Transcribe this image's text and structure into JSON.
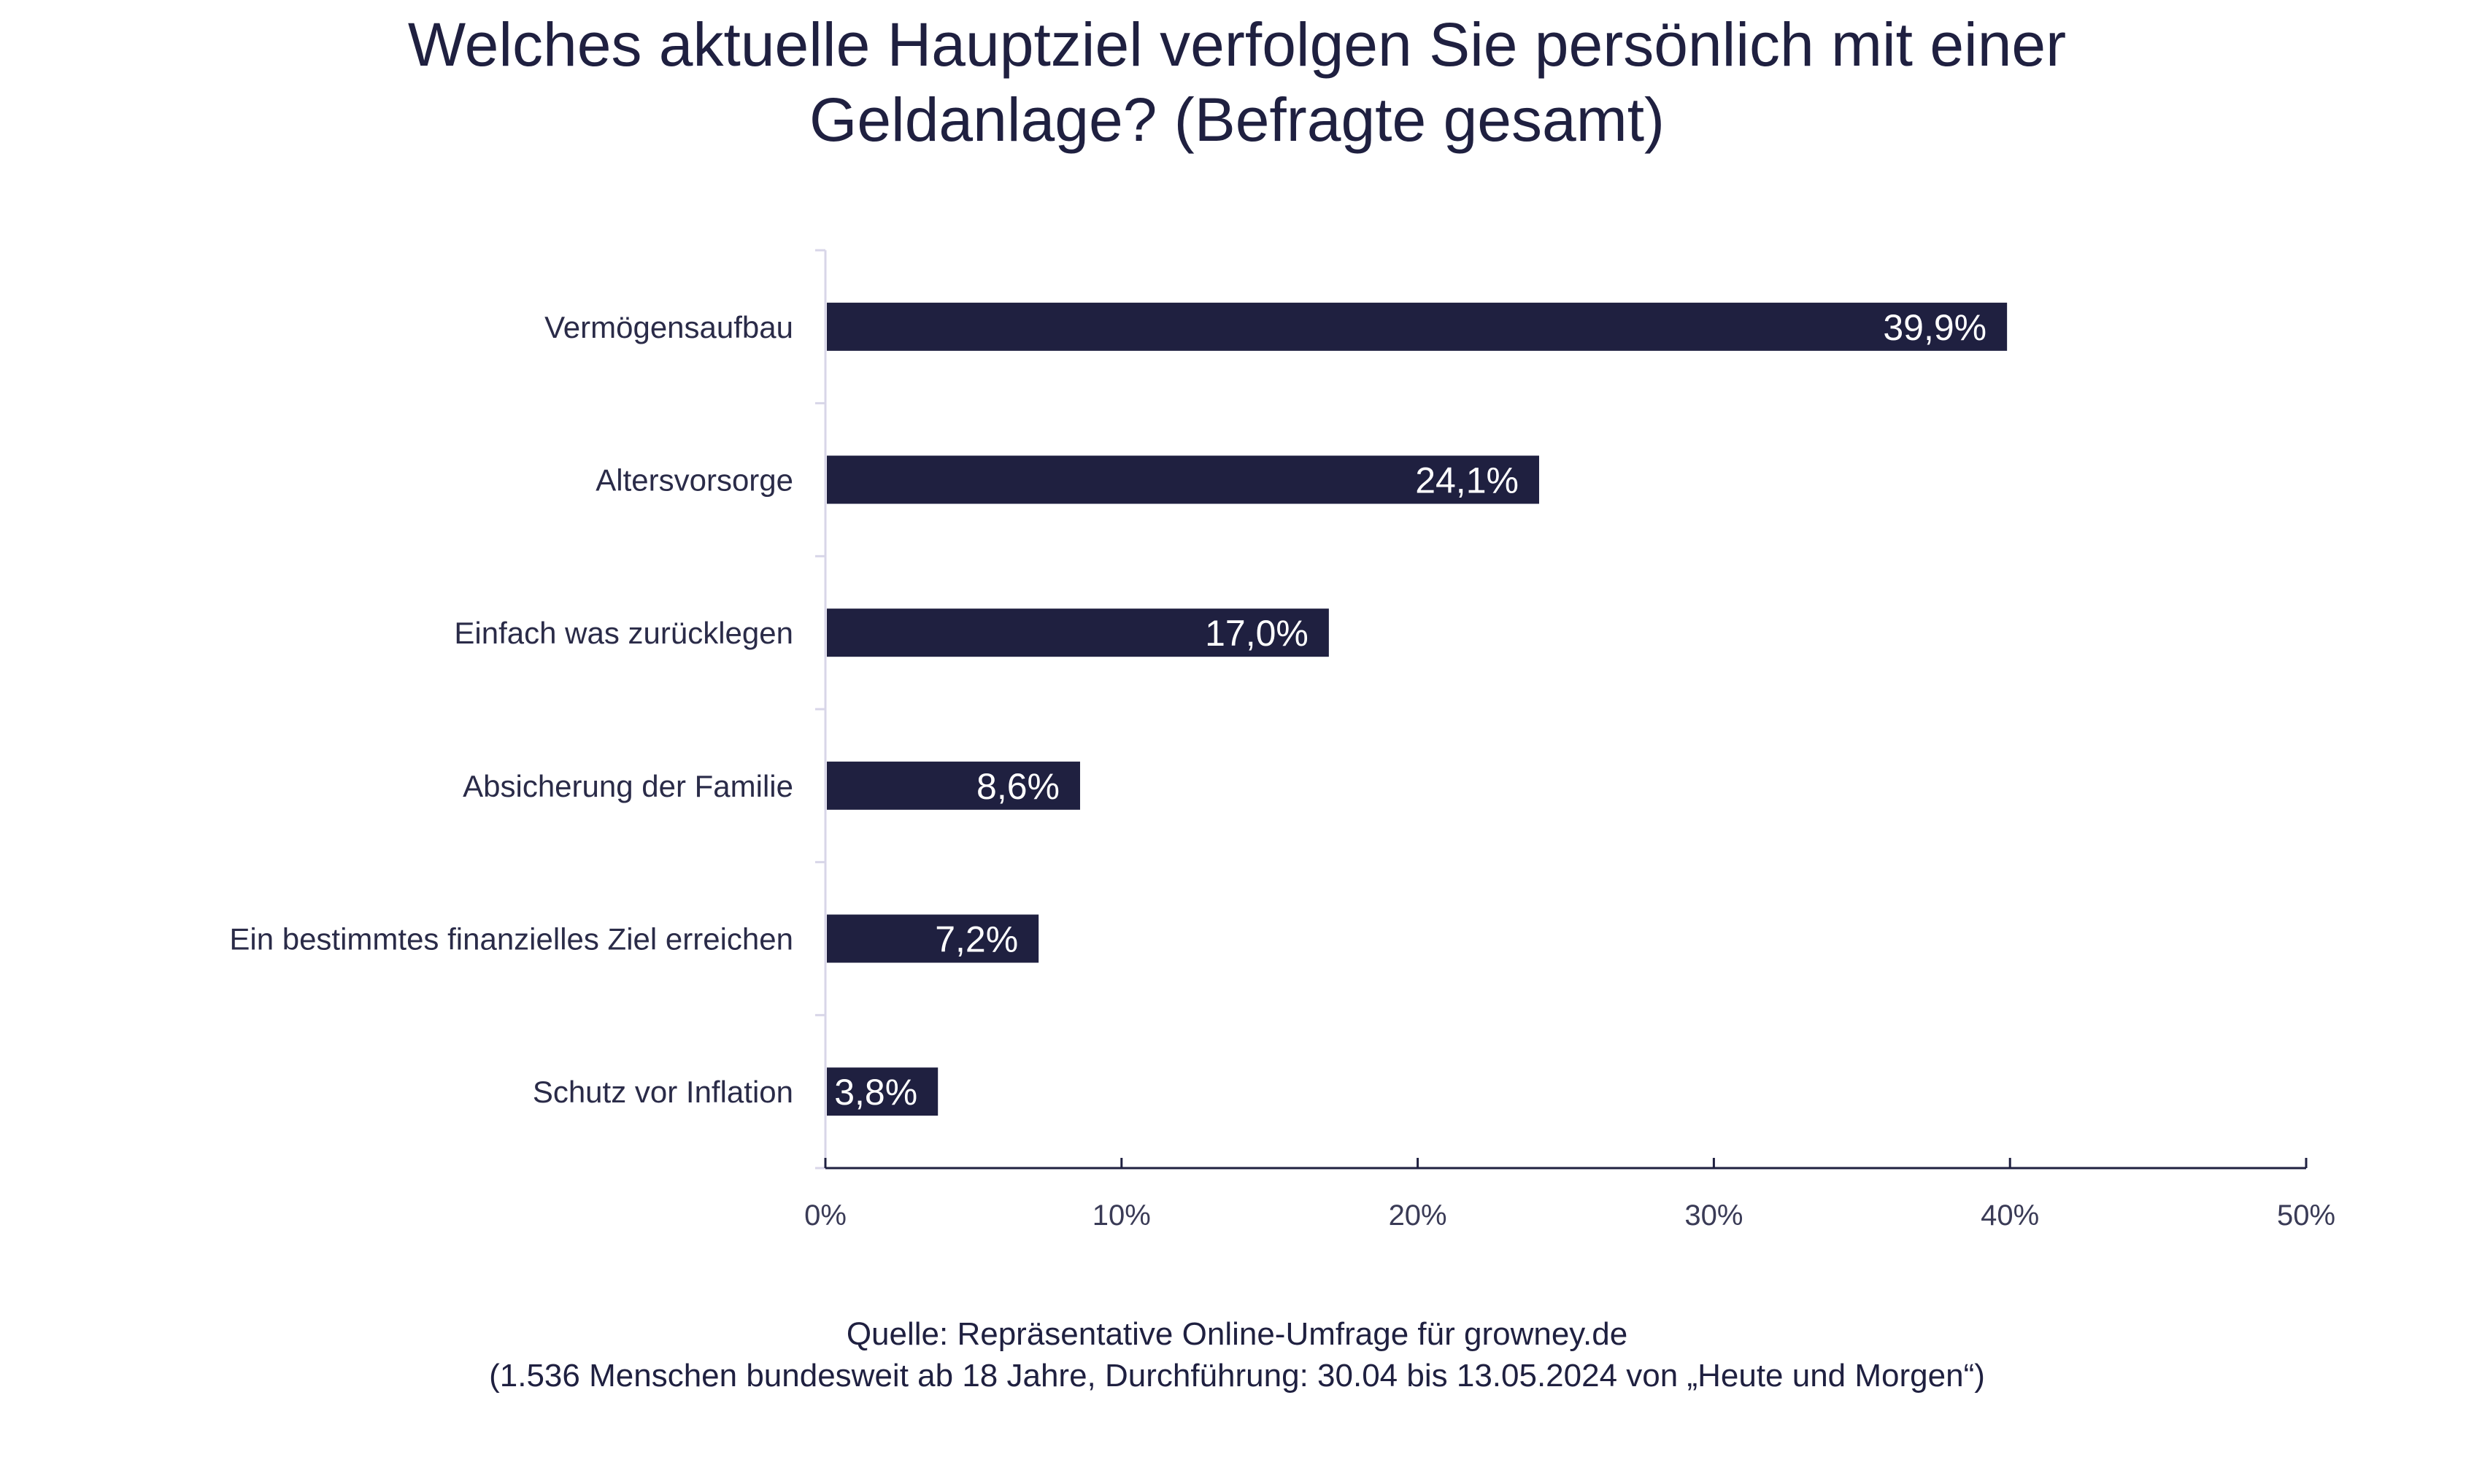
{
  "chart_data": {
    "type": "bar",
    "orientation": "horizontal",
    "title": [
      "Welches aktuelle Hauptziel verfolgen Sie persönlich mit einer",
      "Geldanlage? (Befragte gesamt)"
    ],
    "categories": [
      "Vermögensaufbau",
      "Altersvorsorge",
      "Einfach was zurücklegen",
      "Absicherung der Familie",
      "Ein bestimmtes finanzielles Ziel erreichen",
      "Schutz vor Inflation"
    ],
    "values": [
      39.9,
      24.1,
      17.0,
      8.6,
      7.2,
      3.8
    ],
    "data_labels": [
      "39,9%",
      "24,1%",
      "17,0%",
      "8,6%",
      "7,2%",
      "3,8%"
    ],
    "xlim": [
      0,
      50
    ],
    "xticks": [
      0,
      10,
      20,
      30,
      40,
      50
    ],
    "xtick_labels": [
      "0%",
      "10%",
      "20%",
      "30%",
      "40%",
      "50%"
    ],
    "xlabel": "",
    "ylabel": "",
    "grid": false,
    "colors": {
      "bar": "#1f2040",
      "axis": "#1f2040",
      "category_axis": "#d8d6e8",
      "label": "#ffffff"
    }
  },
  "source": {
    "line1": "Quelle: Repräsentative Online-Umfrage für growney.de",
    "line2": "(1.536 Menschen bundesweit ab 18 Jahre, Durchführung: 30.04 bis 13.05.2024 von „Heute und Morgen“)"
  }
}
